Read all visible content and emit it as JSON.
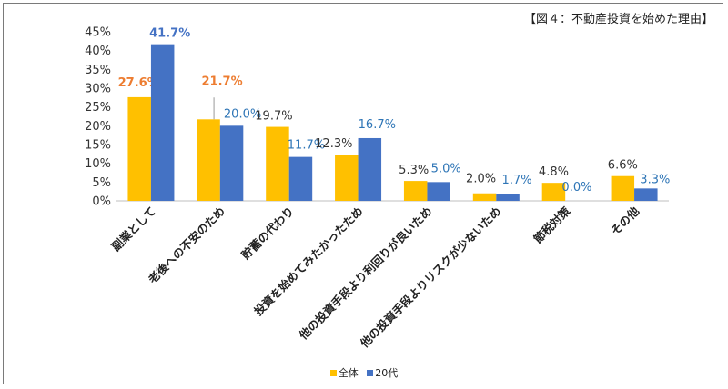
{
  "chart_data": {
    "type": "bar",
    "title": "【図４：不動産投資を始めた理由】",
    "categories": [
      "副業として",
      "老後への不安のため",
      "貯蓄の代わり",
      "投資を始めてみたかったため",
      "他の投資手段より利回りが良いため",
      "他の投資手段よりリスクが少ないため",
      "節税対策",
      "その他"
    ],
    "series": [
      {
        "name": "全体",
        "color": "#FFC000",
        "label_color": "#333333",
        "values": [
          27.6,
          21.7,
          19.7,
          12.3,
          5.3,
          2.0,
          4.8,
          6.6
        ],
        "labels": [
          "27.6%",
          "21.7%",
          "19.7%",
          "12.3%",
          "5.3%",
          "2.0%",
          "4.8%",
          "6.6%"
        ]
      },
      {
        "name": "20代",
        "color": "#4472C4",
        "label_color": "#2E75B6",
        "values": [
          41.7,
          20.0,
          11.7,
          16.7,
          5.0,
          1.7,
          0.0,
          3.3
        ],
        "labels": [
          "41.7%",
          "20.0%",
          "11.7%",
          "16.7%",
          "5.0%",
          "1.7%",
          "0.0%",
          "3.3%"
        ]
      }
    ],
    "highlight": {
      "category_index": 0,
      "label_colors": [
        "#ED7D31",
        "#4472C4"
      ]
    },
    "ylim": [
      0,
      45
    ],
    "yticks": [
      0,
      5,
      10,
      15,
      20,
      25,
      30,
      35,
      40,
      45
    ],
    "ytick_labels": [
      "0%",
      "5%",
      "10%",
      "15%",
      "20%",
      "25%",
      "30%",
      "35%",
      "40%",
      "45%"
    ],
    "grid": false,
    "legend_position": "bottom"
  }
}
